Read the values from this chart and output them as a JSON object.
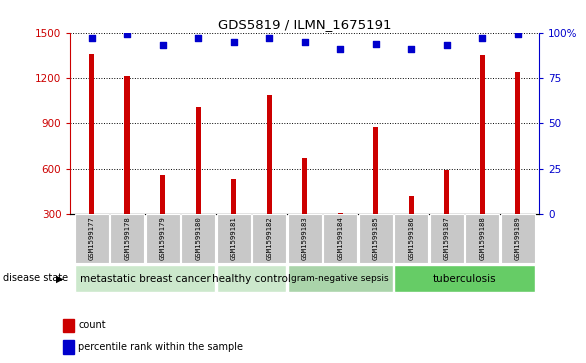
{
  "title": "GDS5819 / ILMN_1675191",
  "samples": [
    "GSM1599177",
    "GSM1599178",
    "GSM1599179",
    "GSM1599180",
    "GSM1599181",
    "GSM1599182",
    "GSM1599183",
    "GSM1599184",
    "GSM1599185",
    "GSM1599186",
    "GSM1599187",
    "GSM1599188",
    "GSM1599189"
  ],
  "counts": [
    1360,
    1215,
    560,
    1010,
    530,
    1090,
    670,
    310,
    875,
    420,
    590,
    1355,
    1240
  ],
  "percentiles": [
    97,
    99,
    93,
    97,
    95,
    97,
    95,
    91,
    94,
    91,
    93,
    97,
    99
  ],
  "ylim_left": [
    300,
    1500
  ],
  "ylim_right": [
    0,
    100
  ],
  "yticks_left": [
    300,
    600,
    900,
    1200,
    1500
  ],
  "yticks_right": [
    0,
    25,
    50,
    75,
    100
  ],
  "groups": [
    {
      "label": "metastatic breast cancer",
      "start": 0,
      "end": 4,
      "color": "#cce8cc"
    },
    {
      "label": "healthy control",
      "start": 4,
      "end": 6,
      "color": "#cce8cc"
    },
    {
      "label": "gram-negative sepsis",
      "start": 6,
      "end": 9,
      "color": "#aad4aa"
    },
    {
      "label": "tuberculosis",
      "start": 9,
      "end": 13,
      "color": "#66cc66"
    }
  ],
  "bar_color": "#cc0000",
  "dot_color": "#0000cc",
  "bar_width": 0.15,
  "grid_color": "black",
  "tick_bg_color": "#c8c8c8",
  "left_axis_color": "#cc0000",
  "right_axis_color": "#0000cc",
  "disease_state_label": "disease state",
  "legend_count_label": "count",
  "legend_pct_label": "percentile rank within the sample"
}
